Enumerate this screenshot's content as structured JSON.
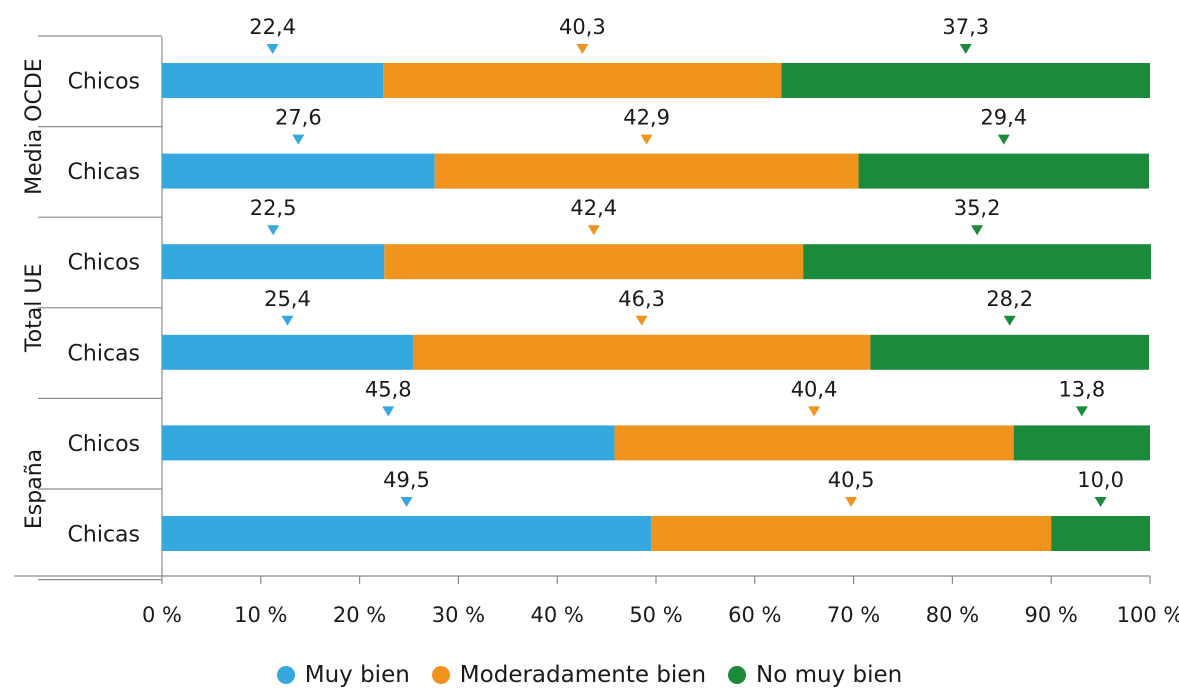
{
  "colors": {
    "muy_bien": "#35a8e0",
    "moderadamente_bien": "#f0941d",
    "no_muy_bien": "#1b8a3a",
    "axis": "#8c8c8c",
    "text": "#1a1a1a"
  },
  "chart_data": {
    "type": "bar",
    "orientation": "horizontal",
    "stacked": true,
    "percent_stacked": true,
    "title": "",
    "xlabel": "",
    "ylabel": "",
    "xlim": [
      0,
      100
    ],
    "grid": false,
    "legend_position": "bottom",
    "x_ticks": [
      "0 %",
      "10 %",
      "20 %",
      "30 %",
      "40 %",
      "50 %",
      "60 %",
      "70 %",
      "80 %",
      "90 %",
      "100 %"
    ],
    "groups": [
      {
        "name": "Media OCDE",
        "rows": [
          "Chicos",
          "Chicas"
        ]
      },
      {
        "name": "Total UE",
        "rows": [
          "Chicos",
          "Chicas"
        ]
      },
      {
        "name": "España",
        "rows": [
          "Chicos",
          "Chicas"
        ]
      }
    ],
    "categories": [
      "Chicos",
      "Chicas",
      "Chicos",
      "Chicas",
      "Chicos",
      "Chicas"
    ],
    "series": [
      {
        "name": "Muy bien",
        "color_key": "muy_bien",
        "values": [
          22.4,
          27.6,
          22.5,
          25.4,
          45.8,
          49.5
        ],
        "labels": [
          "22,4",
          "27,6",
          "22,5",
          "25,4",
          "45,8",
          "49,5"
        ]
      },
      {
        "name": "Moderadamente bien",
        "color_key": "moderadamente_bien",
        "values": [
          40.3,
          42.9,
          42.4,
          46.3,
          40.4,
          40.5
        ],
        "labels": [
          "40,3",
          "42,9",
          "42,4",
          "46,3",
          "40,4",
          "40,5"
        ]
      },
      {
        "name": "No muy bien",
        "color_key": "no_muy_bien",
        "values": [
          37.3,
          29.4,
          35.2,
          28.2,
          13.8,
          10.0
        ],
        "labels": [
          "37,3",
          "29,4",
          "35,2",
          "28,2",
          "13,8",
          "10,0"
        ]
      }
    ]
  },
  "legend": {
    "items": [
      {
        "label": "Muy bien",
        "color_key": "muy_bien"
      },
      {
        "label": "Moderadamente bien",
        "color_key": "moderadamente_bien"
      },
      {
        "label": "No muy bien",
        "color_key": "no_muy_bien"
      }
    ]
  }
}
